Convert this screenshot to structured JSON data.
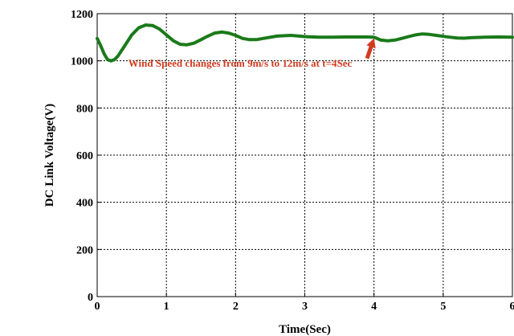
{
  "chart_data": {
    "type": "line",
    "title": "",
    "xlabel": "Time(Sec)",
    "ylabel": "DC Link Voltage(V)",
    "xlim": [
      0,
      6
    ],
    "ylim": [
      0,
      1200
    ],
    "xticks": [
      0,
      1,
      2,
      3,
      4,
      5,
      6
    ],
    "yticks": [
      0,
      200,
      400,
      600,
      800,
      1000,
      1200
    ],
    "grid": true,
    "series": [
      {
        "color": "#1a7a1a",
        "x": [
          0,
          0.05,
          0.1,
          0.15,
          0.2,
          0.25,
          0.3,
          0.4,
          0.5,
          0.6,
          0.7,
          0.8,
          0.9,
          1.0,
          1.1,
          1.2,
          1.3,
          1.4,
          1.5,
          1.6,
          1.7,
          1.8,
          1.9,
          2.0,
          2.1,
          2.2,
          2.3,
          2.4,
          2.6,
          2.8,
          3.0,
          3.2,
          3.4,
          3.6,
          3.8,
          3.9,
          4.0,
          4.1,
          4.2,
          4.3,
          4.4,
          4.5,
          4.6,
          4.7,
          4.8,
          4.9,
          5.0,
          5.1,
          5.2,
          5.3,
          5.4,
          5.6,
          5.8,
          6.0
        ],
        "y": [
          1095,
          1065,
          1030,
          1005,
          1000,
          1005,
          1020,
          1065,
          1110,
          1140,
          1152,
          1150,
          1135,
          1110,
          1085,
          1070,
          1068,
          1075,
          1090,
          1105,
          1118,
          1122,
          1118,
          1108,
          1095,
          1090,
          1090,
          1095,
          1105,
          1108,
          1103,
          1100,
          1100,
          1101,
          1101,
          1101,
          1100,
          1088,
          1085,
          1088,
          1095,
          1103,
          1110,
          1114,
          1112,
          1108,
          1104,
          1100,
          1097,
          1096,
          1098,
          1100,
          1101,
          1100
        ]
      }
    ],
    "annotation": {
      "text": "Wind Speed changes from 9m/s to 12m/s at t=4Sec",
      "color": "#d23a1e",
      "label_x": 0.45,
      "label_y": 975,
      "arrow_from": [
        3.9,
        1010
      ],
      "arrow_to": [
        4.0,
        1095
      ]
    }
  }
}
